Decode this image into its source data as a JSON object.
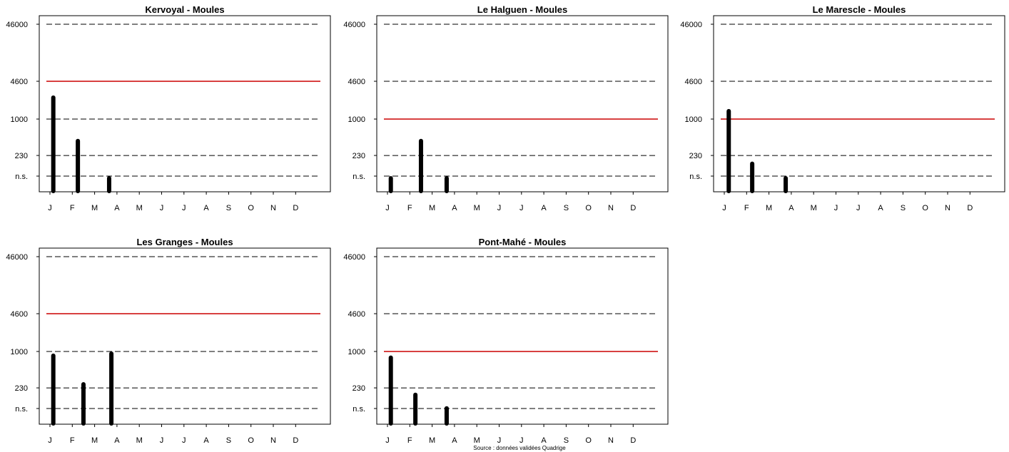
{
  "source_note": "Source : données validées Quadrige",
  "colors": {
    "threshold": "#cc0000",
    "bars": "#000000",
    "reference": "#000000"
  },
  "chart_data": [
    {
      "type": "bar",
      "title": "Kervoyal - Moules",
      "x_tick_labels": [
        "J",
        "F",
        "M",
        "A",
        "M",
        "J",
        "J",
        "A",
        "S",
        "O",
        "N",
        "D"
      ],
      "y_tick_labels": [
        "n.s.",
        "230",
        "1000",
        "4600",
        "46000"
      ],
      "y_ticks": [
        100,
        230,
        1000,
        4600,
        46000
      ],
      "y_scale": "log",
      "reference_lines": [
        100,
        230,
        1000,
        4600,
        46000
      ],
      "threshold": 4600,
      "bars": [
        {
          "month": 1.15,
          "value": 2600
        },
        {
          "month": 2.25,
          "value": 450
        },
        {
          "month": 3.65,
          "value": 100
        }
      ]
    },
    {
      "type": "bar",
      "title": "Le Halguen - Moules",
      "x_tick_labels": [
        "J",
        "F",
        "M",
        "A",
        "M",
        "J",
        "J",
        "A",
        "S",
        "O",
        "N",
        "D"
      ],
      "y_tick_labels": [
        "n.s.",
        "230",
        "1000",
        "4600",
        "46000"
      ],
      "y_ticks": [
        100,
        230,
        1000,
        4600,
        46000
      ],
      "y_scale": "log",
      "reference_lines": [
        100,
        230,
        1000,
        4600,
        46000
      ],
      "threshold": 1000,
      "bars": [
        {
          "month": 1.15,
          "value": 100
        },
        {
          "month": 2.5,
          "value": 450
        },
        {
          "month": 3.65,
          "value": 100
        }
      ]
    },
    {
      "type": "bar",
      "title": "Le Marescle - Moules",
      "x_tick_labels": [
        "J",
        "F",
        "M",
        "A",
        "M",
        "J",
        "J",
        "A",
        "S",
        "O",
        "N",
        "D"
      ],
      "y_tick_labels": [
        "n.s.",
        "230",
        "1000",
        "4600",
        "46000"
      ],
      "y_ticks": [
        100,
        230,
        1000,
        4600,
        46000
      ],
      "y_scale": "log",
      "reference_lines": [
        100,
        230,
        1000,
        4600,
        46000
      ],
      "threshold": 1000,
      "bars": [
        {
          "month": 1.2,
          "value": 1500
        },
        {
          "month": 2.25,
          "value": 180
        },
        {
          "month": 3.75,
          "value": 100
        }
      ]
    },
    {
      "type": "bar",
      "title": "Les Granges - Moules",
      "x_tick_labels": [
        "J",
        "F",
        "M",
        "A",
        "M",
        "J",
        "J",
        "A",
        "S",
        "O",
        "N",
        "D"
      ],
      "y_tick_labels": [
        "n.s.",
        "230",
        "1000",
        "4600",
        "46000"
      ],
      "y_ticks": [
        100,
        230,
        1000,
        4600,
        46000
      ],
      "y_scale": "log",
      "reference_lines": [
        100,
        230,
        1000,
        4600,
        46000
      ],
      "threshold": 4600,
      "bars": [
        {
          "month": 1.15,
          "value": 920
        },
        {
          "month": 2.5,
          "value": 290
        },
        {
          "month": 3.75,
          "value": 1000
        }
      ]
    },
    {
      "type": "bar",
      "title": "Pont-Mahé - Moules",
      "x_tick_labels": [
        "J",
        "F",
        "M",
        "A",
        "M",
        "J",
        "J",
        "A",
        "S",
        "O",
        "N",
        "D"
      ],
      "y_tick_labels": [
        "n.s.",
        "230",
        "1000",
        "4600",
        "46000"
      ],
      "y_ticks": [
        100,
        230,
        1000,
        4600,
        46000
      ],
      "y_scale": "log",
      "reference_lines": [
        100,
        230,
        1000,
        4600,
        46000
      ],
      "threshold": 1000,
      "bars": [
        {
          "month": 1.15,
          "value": 850
        },
        {
          "month": 2.25,
          "value": 190
        },
        {
          "month": 3.65,
          "value": 110
        }
      ]
    }
  ]
}
